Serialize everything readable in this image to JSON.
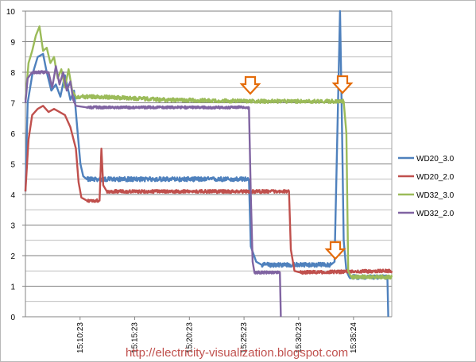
{
  "chart_data": {
    "type": "line",
    "title": "",
    "xlabel": "",
    "ylabel": "",
    "ylim": [
      0,
      10
    ],
    "y_ticks": [
      0,
      1,
      2,
      3,
      4,
      5,
      6,
      7,
      8,
      9,
      10
    ],
    "y_minor_step": 0.5,
    "x_range": [
      "15:05:23",
      "15:38:54"
    ],
    "x_ticks": [
      "15:10:23",
      "15:15:23",
      "15:20:23",
      "15:25:23",
      "15:30:23",
      "15:35:24"
    ],
    "grid": "horizontal",
    "legend": "right",
    "series": [
      {
        "name": "WD20_3.0",
        "color": "#4f81bd",
        "noise": 0.07,
        "points": [
          [
            "15:05:23",
            4.1
          ],
          [
            "15:05:35",
            7.0
          ],
          [
            "15:06:00",
            7.9
          ],
          [
            "15:06:30",
            8.5
          ],
          [
            "15:07:00",
            8.6
          ],
          [
            "15:07:20",
            8.0
          ],
          [
            "15:07:45",
            7.4
          ],
          [
            "15:08:10",
            7.6
          ],
          [
            "15:08:35",
            7.2
          ],
          [
            "15:09:00",
            7.9
          ],
          [
            "15:09:30",
            7.1
          ],
          [
            "15:09:50",
            7.4
          ],
          [
            "15:10:10",
            6.0
          ],
          [
            "15:10:25",
            5.0
          ],
          [
            "15:10:40",
            4.6
          ],
          [
            "15:11:00",
            4.5
          ],
          [
            "15:25:50",
            4.5
          ],
          [
            "15:26:00",
            2.3
          ],
          [
            "15:26:30",
            1.8
          ],
          [
            "15:27:00",
            1.7
          ],
          [
            "15:29:00",
            1.7
          ],
          [
            "15:33:20",
            1.7
          ],
          [
            "15:33:40",
            1.8
          ],
          [
            "15:34:10",
            10.0
          ],
          [
            "15:34:20",
            6.5
          ],
          [
            "15:34:30",
            2.5
          ],
          [
            "15:34:45",
            1.5
          ],
          [
            "15:35:00",
            1.3
          ],
          [
            "15:38:30",
            1.3
          ],
          [
            "15:38:35",
            0.0
          ]
        ]
      },
      {
        "name": "WD20_2.0",
        "color": "#c0504d",
        "noise": 0.05,
        "points": [
          [
            "15:05:23",
            4.1
          ],
          [
            "15:05:40",
            5.8
          ],
          [
            "15:06:00",
            6.6
          ],
          [
            "15:06:30",
            6.8
          ],
          [
            "15:07:00",
            6.9
          ],
          [
            "15:07:30",
            6.7
          ],
          [
            "15:08:00",
            6.8
          ],
          [
            "15:08:30",
            6.7
          ],
          [
            "15:09:00",
            6.6
          ],
          [
            "15:09:30",
            6.2
          ],
          [
            "15:10:00",
            5.5
          ],
          [
            "15:10:15",
            4.4
          ],
          [
            "15:10:30",
            3.9
          ],
          [
            "15:11:00",
            3.8
          ],
          [
            "15:12:10",
            3.8
          ],
          [
            "15:12:20",
            5.5
          ],
          [
            "15:12:30",
            4.3
          ],
          [
            "15:12:50",
            4.1
          ],
          [
            "15:25:50",
            4.1
          ],
          [
            "15:29:30",
            4.1
          ],
          [
            "15:29:40",
            2.2
          ],
          [
            "15:30:00",
            1.5
          ],
          [
            "15:30:30",
            1.45
          ],
          [
            "15:38:54",
            1.5
          ]
        ]
      },
      {
        "name": "WD32_3.0",
        "color": "#9bbb59",
        "noise": 0.06,
        "points": [
          [
            "15:05:23",
            7.1
          ],
          [
            "15:05:40",
            8.3
          ],
          [
            "15:06:00",
            8.7
          ],
          [
            "15:06:20",
            9.2
          ],
          [
            "15:06:40",
            9.5
          ],
          [
            "15:07:00",
            8.7
          ],
          [
            "15:07:20",
            8.8
          ],
          [
            "15:07:40",
            8.3
          ],
          [
            "15:08:00",
            8.5
          ],
          [
            "15:08:20",
            7.8
          ],
          [
            "15:08:40",
            8.1
          ],
          [
            "15:09:00",
            7.5
          ],
          [
            "15:09:20",
            8.1
          ],
          [
            "15:09:40",
            7.4
          ],
          [
            "15:10:00",
            7.2
          ],
          [
            "15:12:00",
            7.2
          ],
          [
            "15:18:00",
            7.1
          ],
          [
            "15:25:50",
            7.05
          ],
          [
            "15:34:30",
            7.05
          ],
          [
            "15:34:45",
            6.0
          ],
          [
            "15:34:55",
            1.5
          ],
          [
            "15:35:10",
            1.3
          ],
          [
            "15:38:54",
            1.3
          ]
        ]
      },
      {
        "name": "WD32_2.0",
        "color": "#8064a2",
        "noise": 0.04,
        "points": [
          [
            "15:05:23",
            7.0
          ],
          [
            "15:05:35",
            7.8
          ],
          [
            "15:06:00",
            8.0
          ],
          [
            "15:07:30",
            8.0
          ],
          [
            "15:07:50",
            7.5
          ],
          [
            "15:08:10",
            8.2
          ],
          [
            "15:08:30",
            7.6
          ],
          [
            "15:08:50",
            8.0
          ],
          [
            "15:09:10",
            7.4
          ],
          [
            "15:09:30",
            7.7
          ],
          [
            "15:09:45",
            7.1
          ],
          [
            "15:10:00",
            6.9
          ],
          [
            "15:11:00",
            6.85
          ],
          [
            "15:25:50",
            6.85
          ],
          [
            "15:26:00",
            4.0
          ],
          [
            "15:26:10",
            1.8
          ],
          [
            "15:26:20",
            1.45
          ],
          [
            "15:28:40",
            1.45
          ],
          [
            "15:28:45",
            0.0
          ]
        ]
      }
    ]
  },
  "watermark": "http://electricity-visualization.blogspot.com"
}
